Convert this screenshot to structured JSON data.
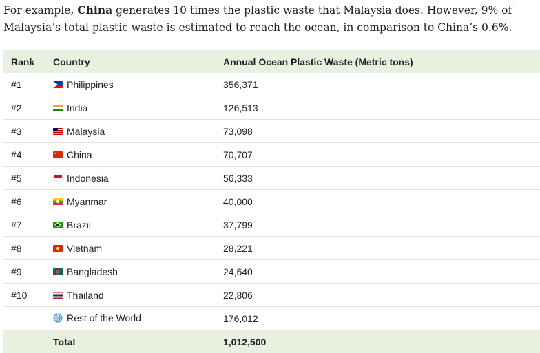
{
  "intro": {
    "part1": "For example, ",
    "bold": "China",
    "part2": " generates 10 times the plastic waste that Malaysia does. However, 9% of",
    "line2": "Malaysia’s total plastic waste is estimated to reach the ocean, in comparison to China’s 0.6%."
  },
  "table": {
    "headers": [
      "Rank",
      "Country",
      "Annual Ocean Plastic Waste (Metric tons)"
    ],
    "rows": [
      {
        "rank": "#1",
        "country": "Philippines",
        "flag": "philippines-flag-icon",
        "value": "356,371"
      },
      {
        "rank": "#2",
        "country": "India",
        "flag": "india-flag-icon",
        "value": "126,513"
      },
      {
        "rank": "#3",
        "country": "Malaysia",
        "flag": "malaysia-flag-icon",
        "value": "73,098"
      },
      {
        "rank": "#4",
        "country": "China",
        "flag": "china-flag-icon",
        "value": "70,707"
      },
      {
        "rank": "#5",
        "country": "Indonesia",
        "flag": "indonesia-flag-icon",
        "value": "56,333"
      },
      {
        "rank": "#6",
        "country": "Myanmar",
        "flag": "myanmar-flag-icon",
        "value": "40,000"
      },
      {
        "rank": "#7",
        "country": "Brazil",
        "flag": "brazil-flag-icon",
        "value": "37,799"
      },
      {
        "rank": "#8",
        "country": "Vietnam",
        "flag": "vietnam-flag-icon",
        "value": "28,221"
      },
      {
        "rank": "#9",
        "country": "Bangladesh",
        "flag": "bangladesh-flag-icon",
        "value": "24,640"
      },
      {
        "rank": "#10",
        "country": "Thailand",
        "flag": "thailand-flag-icon",
        "value": "22,806"
      },
      {
        "rank": "",
        "country": "Rest of the World",
        "flag": "globe-icon",
        "value": "176,012"
      }
    ],
    "total": {
      "rank": "",
      "label": "Total",
      "value": "1,012,500"
    }
  },
  "colors": {
    "header_bg": "#e8f0df",
    "row_border": "#dfe6d6"
  }
}
